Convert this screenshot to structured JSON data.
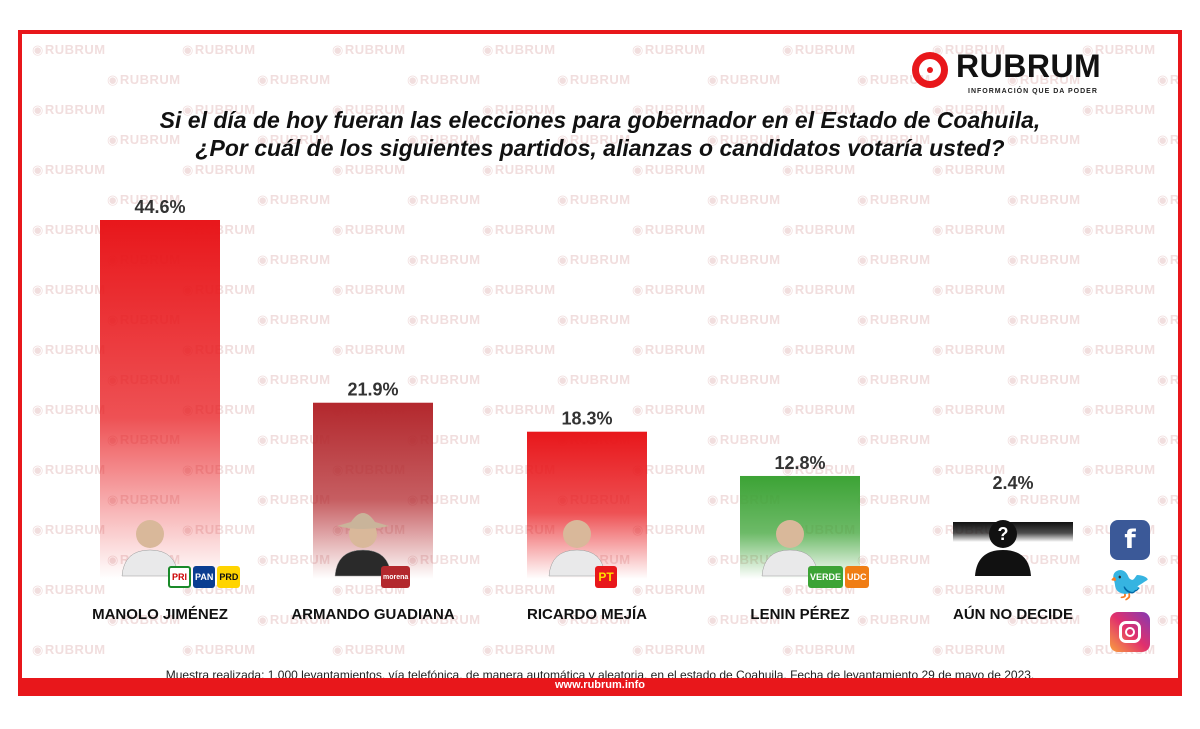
{
  "brand": {
    "name": "RUBRUM",
    "tagline": "INFORMACIÓN QUE DA PODER",
    "watermark": "RUBRUM",
    "url": "www.rubrum.info"
  },
  "title_line1": "Si el día de hoy fueran las elecciones para gobernador en el Estado de Coahuila,",
  "title_line2": "¿Por cuál de los siguientes partidos, alianzas o candidatos votaría usted?",
  "footnote": "Muestra realizada: 1,000 levantamientos, vía telefónica, de manera automática y aleatoria, en el estado de Coahuila. Fecha de  levantamiento 29 de mayo de 2023.",
  "social": [
    "facebook-icon",
    "twitter-icon",
    "instagram-icon"
  ],
  "colors": {
    "accent": "#e8171b",
    "bar_red": "#e8171b",
    "bar_darkred": "#b3282d",
    "bar_green": "#3ca335"
  },
  "chart_data": {
    "type": "bar",
    "title": "Si el día de hoy fueran las elecciones para gobernador en el Estado de Coahuila, ¿Por cuál de los siguientes partidos, alianzas o candidatos votaría usted?",
    "categories": [
      "MANOLO JIMÉNEZ",
      "ARMANDO GUADIANA",
      "RICARDO MEJÍA",
      "LENIN PÉREZ",
      "AÚN NO DECIDE"
    ],
    "values": [
      44.6,
      21.9,
      18.3,
      12.8,
      2.4
    ],
    "labels": [
      "44.6%",
      "21.9%",
      "18.3%",
      "12.8%",
      "2.4%"
    ],
    "colors": [
      "#e8171b",
      "#b3282d",
      "#e8171b",
      "#3ca335",
      "#111111"
    ],
    "parties": [
      [
        "PRI",
        "PAN",
        "PRD"
      ],
      [
        "morena"
      ],
      [
        "PT"
      ],
      [
        "VERDE",
        "UDC"
      ],
      []
    ],
    "xlabel": "",
    "ylabel": "",
    "ylim": [
      0,
      50
    ]
  }
}
